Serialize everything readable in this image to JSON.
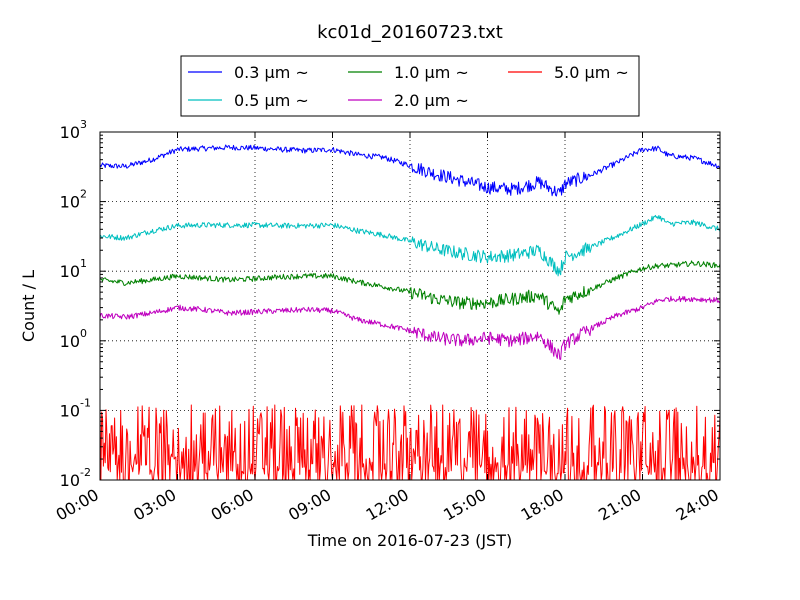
{
  "chart_data": {
    "type": "line",
    "title": "kc01d_20160723.txt",
    "xlabel": "Time on 2016-07-23 (JST)",
    "ylabel": "Count / L",
    "y_scale": "log",
    "ylim": [
      0.01,
      1000
    ],
    "xlim": [
      "00:00",
      "24:00"
    ],
    "x_ticks": [
      "00:00",
      "03:00",
      "06:00",
      "09:00",
      "12:00",
      "15:00",
      "18:00",
      "21:00",
      "24:00"
    ],
    "y_ticks": [
      {
        "value": 0.01,
        "mant": "10",
        "exp": "-2"
      },
      {
        "value": 0.1,
        "mant": "10",
        "exp": "-1"
      },
      {
        "value": 1,
        "mant": "10",
        "exp": "0"
      },
      {
        "value": 10,
        "mant": "10",
        "exp": "1"
      },
      {
        "value": 100,
        "mant": "10",
        "exp": "2"
      },
      {
        "value": 1000,
        "mant": "10",
        "exp": "3"
      }
    ],
    "grid": true,
    "legend_position": "top",
    "series": [
      {
        "name": "0.3 µm ~",
        "color": "#0000ff",
        "style": "smooth",
        "x": [
          0,
          1,
          2,
          3,
          4,
          5,
          6,
          7,
          8,
          9,
          10,
          11,
          12,
          13,
          14,
          15,
          16,
          17,
          17.8,
          18,
          19,
          20,
          21,
          21.6,
          22,
          23,
          24
        ],
        "y": [
          330,
          320,
          400,
          560,
          580,
          600,
          590,
          560,
          540,
          560,
          470,
          430,
          330,
          250,
          200,
          160,
          150,
          190,
          130,
          180,
          240,
          360,
          560,
          580,
          460,
          420,
          320
        ]
      },
      {
        "name": "0.5 µm ~",
        "color": "#00bfbf",
        "style": "smooth",
        "x": [
          0,
          1,
          2,
          3,
          4,
          5,
          6,
          7,
          8,
          9,
          10,
          11,
          12,
          13,
          14,
          15,
          16,
          17,
          17.8,
          18,
          19,
          20,
          21,
          21.6,
          22,
          23,
          24
        ],
        "y": [
          32,
          30,
          38,
          45,
          46,
          46,
          46,
          45,
          45,
          46,
          38,
          33,
          27,
          21,
          18,
          16,
          17,
          20,
          10,
          16,
          22,
          32,
          48,
          62,
          48,
          50,
          40
        ]
      },
      {
        "name": "1.0 µm ~",
        "color": "#008000",
        "style": "smooth",
        "x": [
          0,
          1,
          2,
          3,
          4,
          5,
          6,
          7,
          8,
          9,
          10,
          11,
          12,
          13,
          14,
          15,
          16,
          17,
          17.8,
          18,
          19,
          20,
          21,
          21.6,
          22,
          23,
          24
        ],
        "y": [
          7.5,
          6.8,
          7.5,
          8.5,
          8.0,
          7.5,
          7.8,
          8.3,
          8.5,
          8.5,
          7.0,
          6.0,
          5.0,
          4.0,
          3.5,
          3.5,
          4.0,
          4.5,
          2.5,
          4.0,
          5.5,
          8.0,
          11,
          12,
          12,
          13,
          12
        ]
      },
      {
        "name": "2.0 µm ~",
        "color": "#bf00bf",
        "style": "smooth",
        "x": [
          0,
          1,
          2,
          3,
          4,
          5,
          6,
          7,
          8,
          9,
          10,
          11,
          12,
          13,
          14,
          15,
          16,
          17,
          17.8,
          18,
          19,
          20,
          21,
          21.6,
          22,
          23,
          24
        ],
        "y": [
          2.3,
          2.2,
          2.5,
          3.0,
          2.8,
          2.5,
          2.6,
          2.7,
          2.8,
          2.7,
          2.0,
          1.7,
          1.4,
          1.1,
          1.0,
          1.1,
          1.0,
          1.2,
          0.6,
          0.9,
          1.5,
          2.3,
          3.0,
          3.8,
          4.0,
          4.0,
          3.8
        ]
      },
      {
        "name": "5.0 µm ~",
        "color": "#ff0000",
        "style": "spiky",
        "baseline": 0.01,
        "peak_max": 0.12,
        "x": [
          0,
          3,
          6,
          9,
          12,
          15,
          18,
          21,
          24
        ],
        "y": [
          0.03,
          0.04,
          0.05,
          0.04,
          0.03,
          0.04,
          0.03,
          0.03,
          0.03
        ]
      }
    ]
  }
}
